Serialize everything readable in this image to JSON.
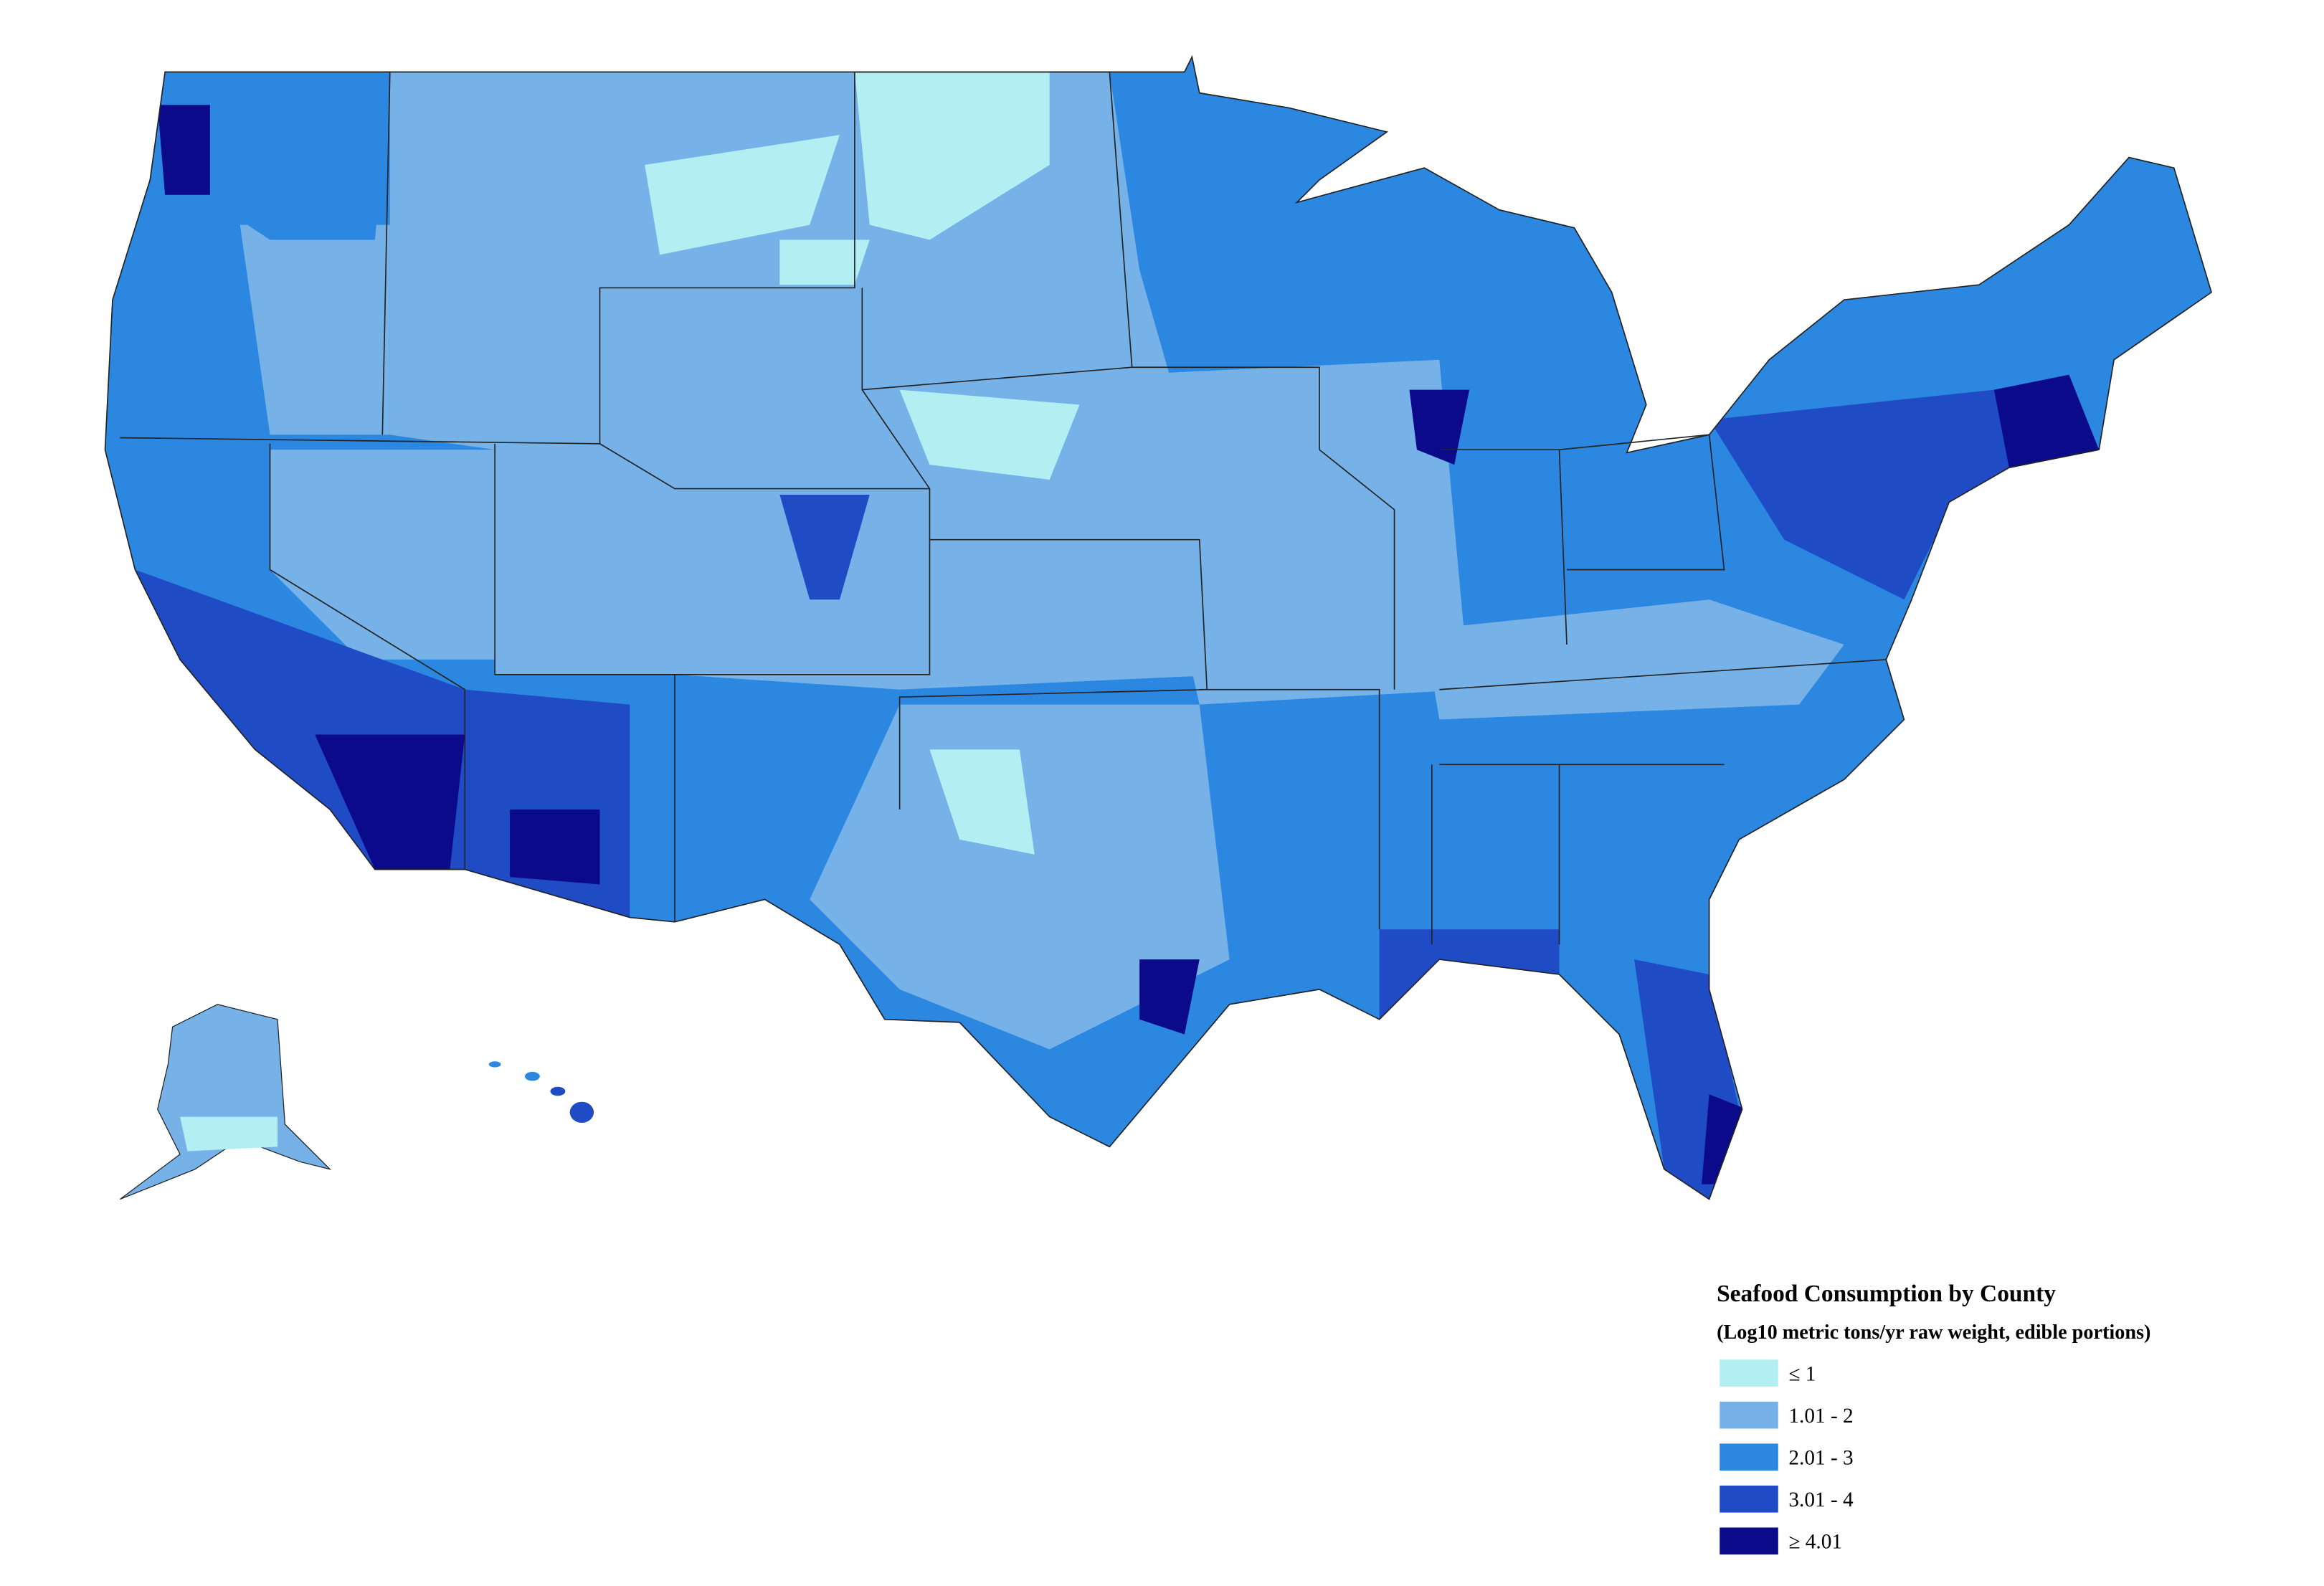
{
  "legend": {
    "title": "Seafood Consumption by County",
    "subtitle": "(Log10 metric tons/yr raw weight, edible portions)",
    "items": [
      {
        "label": "≤ 1",
        "color": "#b3eef3"
      },
      {
        "label": "1.01 - 2",
        "color": "#76b2e8"
      },
      {
        "label": "2.01 - 3",
        "color": "#2b87e0"
      },
      {
        "label": "3.01 - 4",
        "color": "#1f4cc4"
      },
      {
        "label": "≥ 4.01",
        "color": "#0b0a8a"
      }
    ]
  }
}
